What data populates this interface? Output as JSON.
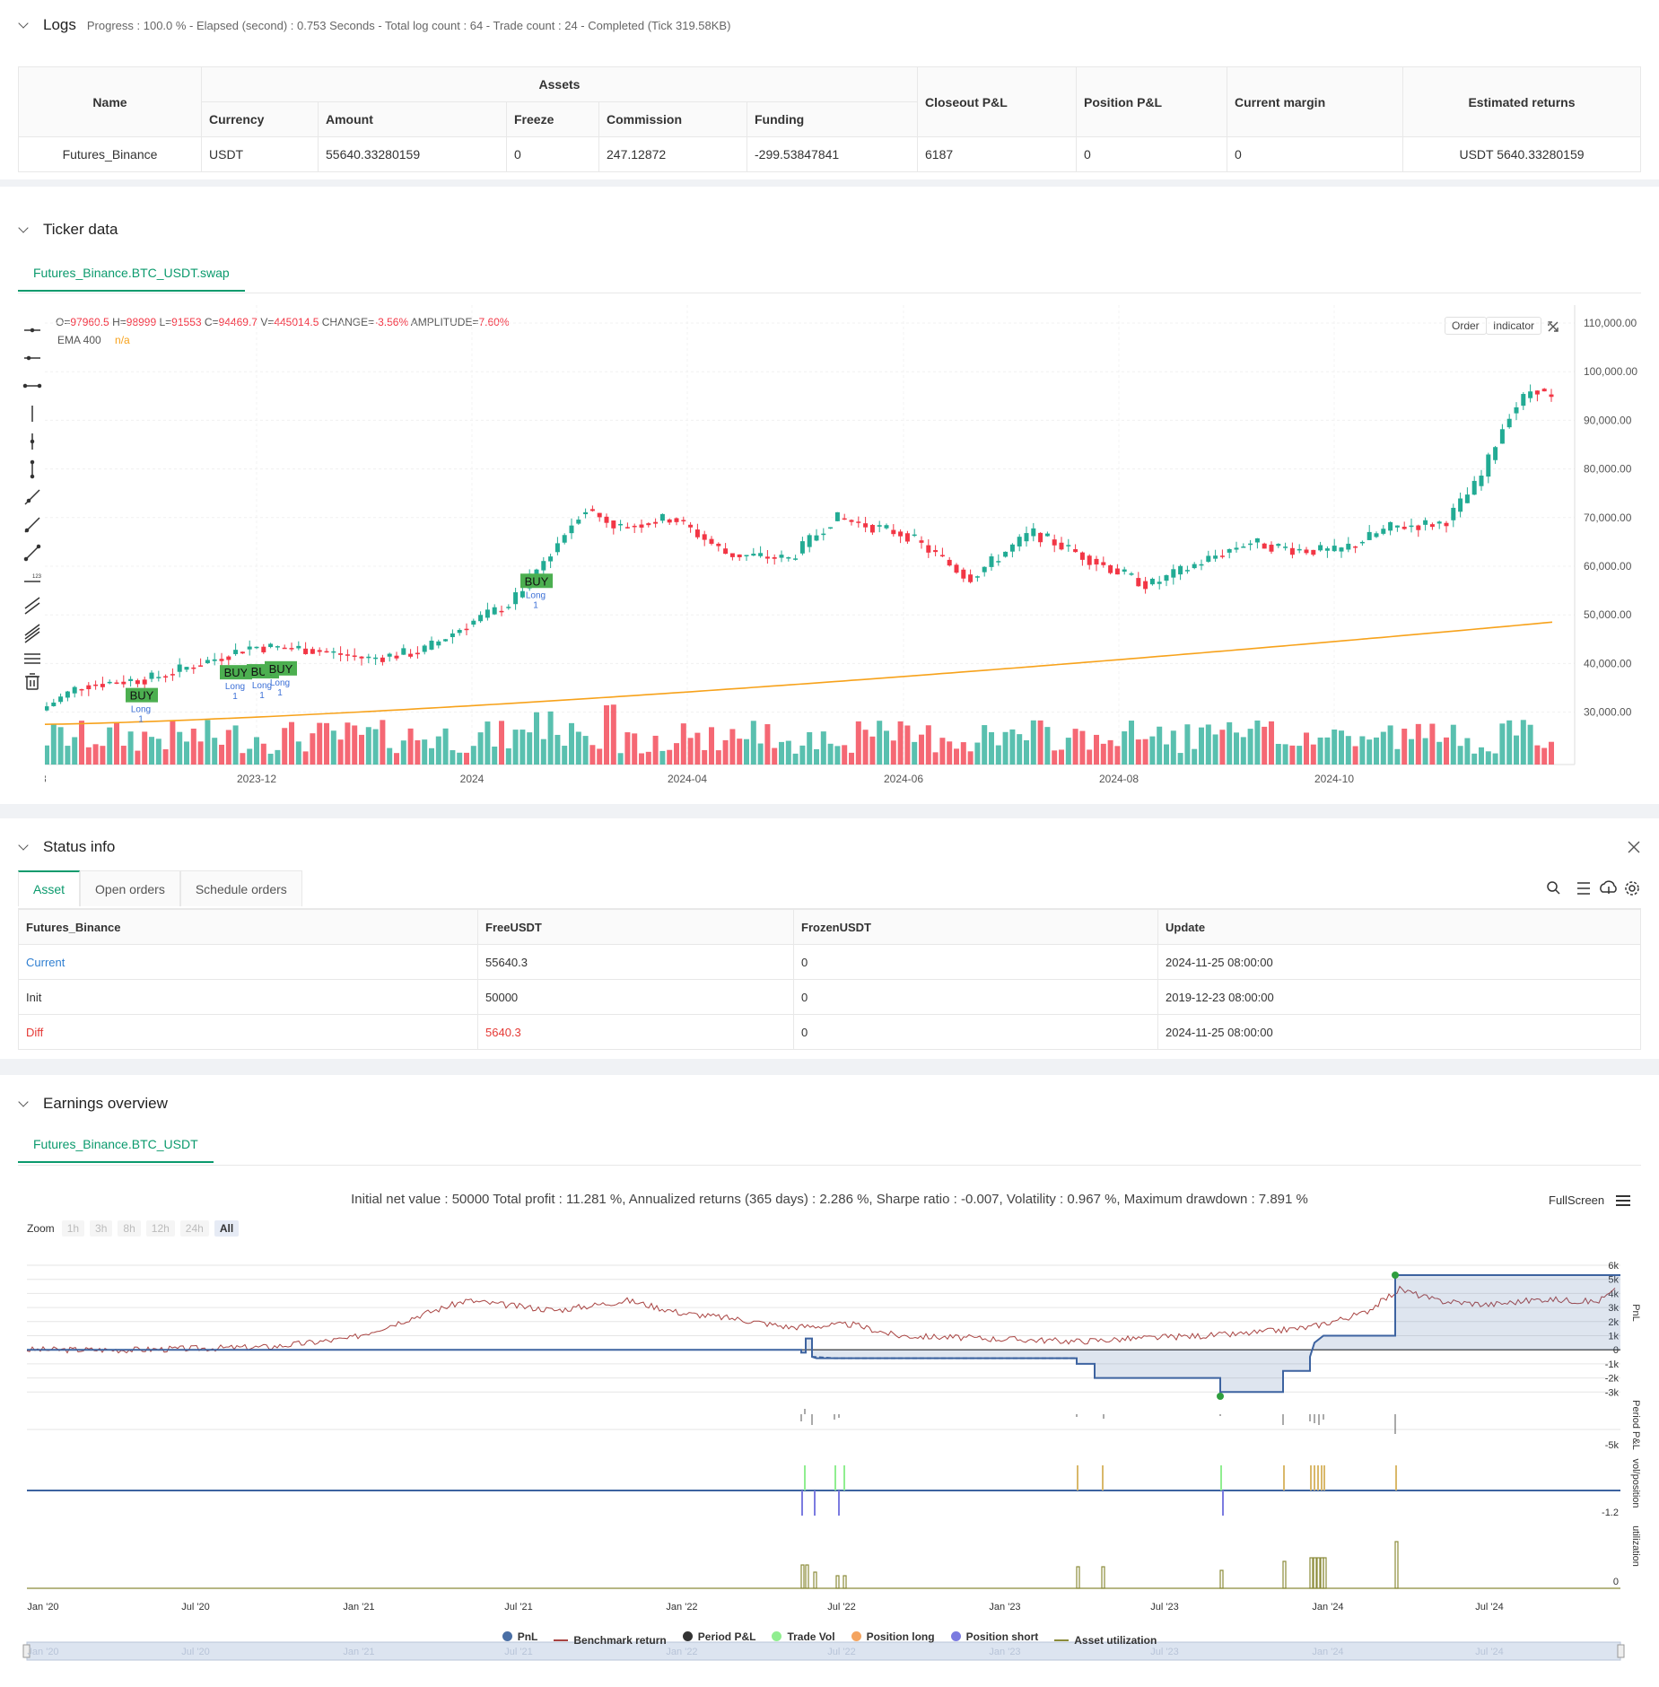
{
  "logs": {
    "title": "Logs",
    "info": "Progress : 100.0 % - Elapsed (second) : 0.753 Seconds - Total log count : 64 - Trade count : 24 - Completed (Tick 319.58KB)",
    "headers": {
      "name": "Name",
      "assets": "Assets",
      "currency": "Currency",
      "amount": "Amount",
      "freeze": "Freeze",
      "commission": "Commission",
      "funding": "Funding",
      "closeout": "Closeout P&L",
      "position": "Position P&L",
      "margin": "Current margin",
      "returns": "Estimated returns"
    },
    "row": {
      "name": "Futures_Binance",
      "currency": "USDT",
      "amount": "55640.33280159",
      "freeze": "0",
      "commission": "247.12872",
      "funding": "-299.53847841",
      "closeout": "6187",
      "position": "0",
      "margin": "0",
      "returns": "USDT 5640.33280159"
    }
  },
  "ticker": {
    "title": "Ticker data",
    "tab": "Futures_Binance.BTC_USDT.swap",
    "ohlc": {
      "o_label": "O=",
      "o": "97960.5",
      "h_label": "H=",
      "h": "98999",
      "l_label": "L=",
      "l": "91553",
      "c_label": "C=",
      "c": "94469.7",
      "v_label": "V=",
      "v": "445014.5",
      "chg_label": "CHANGE=",
      "chg": "-3.56%",
      "amp_label": "AMPLITUDE=",
      "amp": "7.60%"
    },
    "ema_label": "EMA 400",
    "ema_value": "n/a",
    "order_btn": "Order",
    "indicator_btn": "Indicator",
    "buy_label": "BUY",
    "buy_short": "BU",
    "long_label": "Long",
    "long_qty": "1",
    "y_ticks": [
      "110,000.00",
      "100,000.00",
      "90,000.00",
      "80,000.00",
      "70,000.00",
      "60,000.00",
      "50,000.00",
      "40,000.00",
      "30,000.00"
    ],
    "x_ticks": [
      "3",
      "2023-12",
      "2024",
      "2024-04",
      "2024-06",
      "2024-08",
      "2024-10"
    ],
    "colors": {
      "up": "#22ab94",
      "down": "#f23645",
      "ema": "#f7a21b",
      "buy": "#4caf50"
    }
  },
  "status": {
    "title": "Status info",
    "tabs": [
      "Asset",
      "Open orders",
      "Schedule orders"
    ],
    "headers": [
      "Futures_Binance",
      "FreeUSDT",
      "FrozenUSDT",
      "Update"
    ],
    "rows": [
      {
        "label": "Current",
        "free": "55640.3",
        "frozen": "0",
        "update": "2024-11-25 08:00:00"
      },
      {
        "label": "Init",
        "free": "50000",
        "frozen": "0",
        "update": "2019-12-23 08:00:00"
      },
      {
        "label": "Diff",
        "free": "5640.3",
        "frozen": "0",
        "update": "2024-11-25 08:00:00"
      }
    ]
  },
  "earnings": {
    "title": "Earnings overview",
    "tab": "Futures_Binance.BTC_USDT",
    "summary": "Initial net value : 50000  Total profit : 11.281 %, Annualized returns (365 days) : 2.286 %, Sharpe ratio : -0.007, Volatility : 0.967 %, Maximum drawdown : 7.891 %",
    "fullscreen": "FullScreen",
    "zoom_label": "Zoom",
    "zoom_options": [
      "1h",
      "3h",
      "8h",
      "12h",
      "24h",
      "All"
    ],
    "pnl_ticks": [
      "6k",
      "5k",
      "4k",
      "3k",
      "2k",
      "1k",
      "0",
      "-1k",
      "-2k",
      "-3k"
    ],
    "axis_titles": [
      "PnL",
      "Period P&L",
      "vol/position",
      "utilization"
    ],
    "period_tick": "-5k",
    "vol_tick": "-1.2",
    "util_tick": "0",
    "x_ticks": [
      "Jan '20",
      "Jul '20",
      "Jan '21",
      "Jul '21",
      "Jan '22",
      "Jul '22",
      "Jan '23",
      "Jul '23",
      "Jan '24",
      "Jul '24"
    ],
    "legend": [
      {
        "name": "PnL",
        "color": "#4a6fa5",
        "kind": "dot"
      },
      {
        "name": "Benchmark return",
        "color": "#a94442",
        "kind": "line"
      },
      {
        "name": "Period P&L",
        "color": "#333333",
        "kind": "dot"
      },
      {
        "name": "Trade Vol",
        "color": "#90ee90",
        "kind": "dot"
      },
      {
        "name": "Position long",
        "color": "#f4a460",
        "kind": "dot"
      },
      {
        "name": "Position short",
        "color": "#7b7be0",
        "kind": "dot"
      },
      {
        "name": "Asset utilization",
        "color": "#8b8b3a",
        "kind": "line"
      }
    ]
  }
}
